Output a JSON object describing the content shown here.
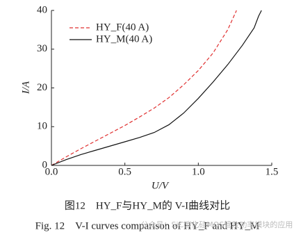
{
  "chart_data": {
    "type": "line",
    "xlabel": "U/V",
    "ylabel": "I/A",
    "x": [
      0,
      0.1,
      0.2,
      0.3,
      0.4,
      0.5,
      0.6,
      0.7,
      0.8,
      0.9,
      1.0,
      1.1,
      1.2,
      1.3,
      1.38,
      1.41,
      1.43,
      1.26
    ],
    "series": [
      {
        "name": "HY_F(40 A)",
        "color": "#e03030",
        "dash": true,
        "x": [
          0,
          0.1,
          0.2,
          0.3,
          0.4,
          0.5,
          0.6,
          0.7,
          0.8,
          0.9,
          1.0,
          1.1,
          1.2,
          1.26
        ],
        "values": [
          0,
          2.2,
          4.3,
          6.3,
          8.3,
          10.3,
          12.5,
          14.8,
          17.5,
          20.8,
          24.5,
          29,
          35,
          40
        ]
      },
      {
        "name": "HY_M(40 A)",
        "color": "#111111",
        "dash": false,
        "x": [
          0,
          0.1,
          0.2,
          0.3,
          0.4,
          0.5,
          0.6,
          0.7,
          0.8,
          0.9,
          1.0,
          1.1,
          1.2,
          1.3,
          1.38,
          1.41,
          1.43
        ],
        "values": [
          0,
          1.5,
          2.8,
          3.9,
          5.0,
          6.1,
          7.2,
          8.5,
          10.5,
          13.5,
          17.3,
          21.5,
          26,
          31,
          35.5,
          38.5,
          40
        ]
      }
    ],
    "xlim": [
      0,
      1.5
    ],
    "ylim": [
      0,
      40
    ],
    "xticks": [
      {
        "value": 0,
        "label": "0.0"
      },
      0.5,
      {
        "value": 1,
        "label": "1.0"
      },
      1.5
    ],
    "yticks": [
      0,
      10,
      20,
      30,
      40
    ],
    "legend": "upper-left",
    "caption_cn": "图12　HY_F与HY_M的 V-I曲线对比",
    "caption_en": "Fig. 12　V-I curves comparison of HY_F and HY_M",
    "watermark": "公众号：SiC碳化硅MOS管及功率模块的应用"
  }
}
